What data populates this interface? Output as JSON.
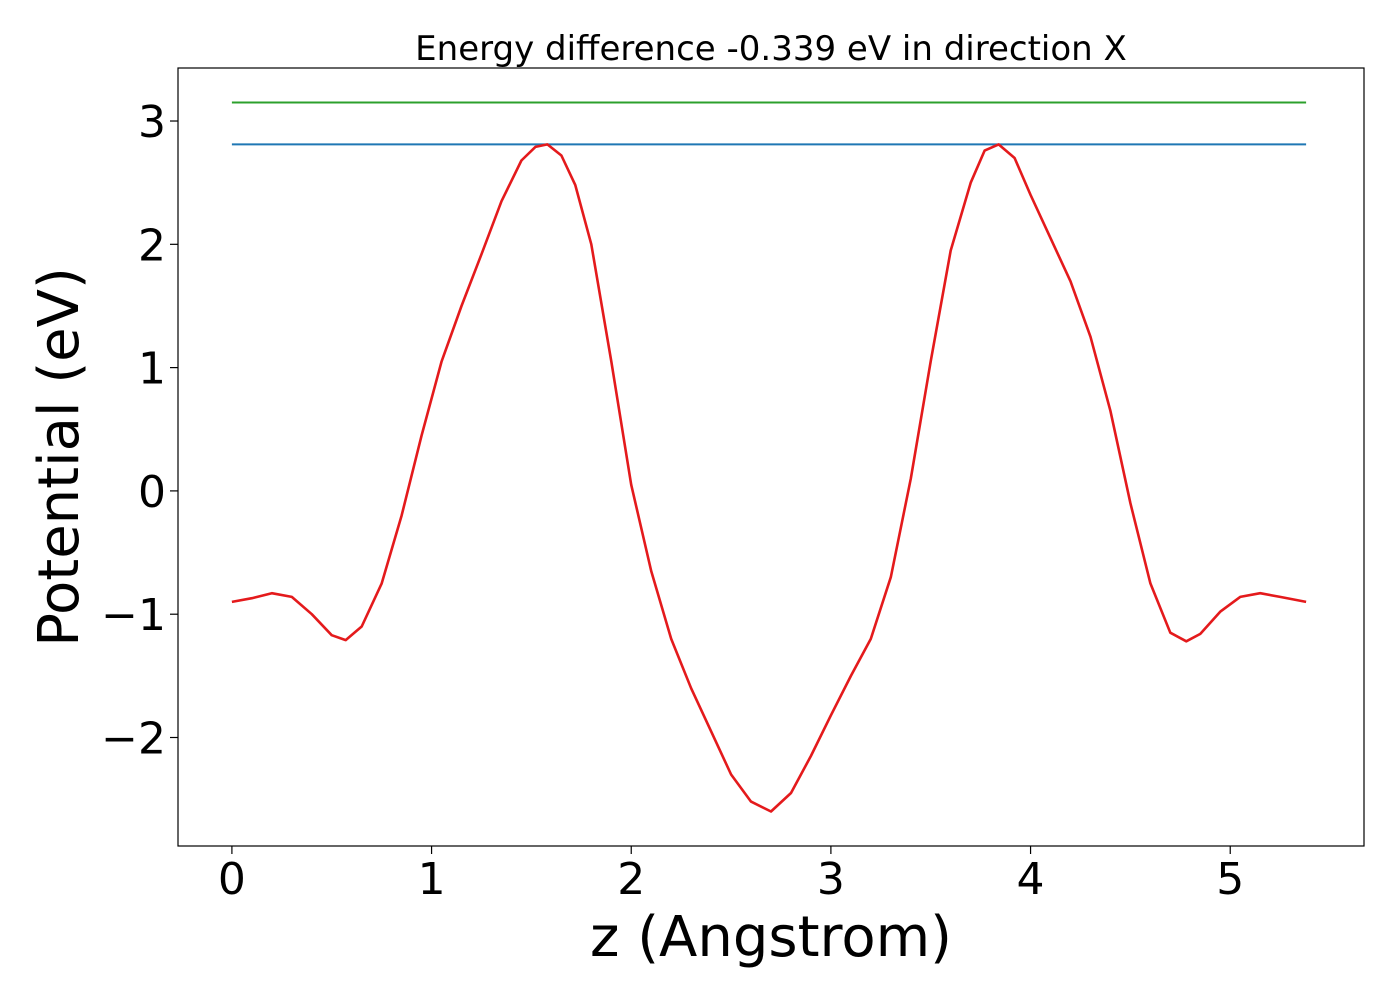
{
  "chart_data": {
    "type": "line",
    "title": "Energy difference -0.339 eV in direction X",
    "xlabel": "z (Angstrom)",
    "ylabel": "Potential (eV)",
    "xlim": [
      -0.27,
      5.67
    ],
    "ylim": [
      -2.88,
      3.43
    ],
    "grid": false,
    "xticks": [
      0,
      1,
      2,
      3,
      4,
      5
    ],
    "xtick_labels": [
      "0",
      "1",
      "2",
      "3",
      "4",
      "5"
    ],
    "yticks": [
      3,
      2,
      1,
      0,
      -1,
      -2
    ],
    "ytick_labels": [
      "3",
      "2",
      "1",
      "0",
      "−1",
      "−2"
    ],
    "series": [
      {
        "kind": "hline",
        "color": "#2ca02c",
        "y": 3.15,
        "x": [
          0,
          5.38
        ]
      },
      {
        "kind": "hline",
        "color": "#1f77b4",
        "y": 2.81,
        "x": [
          0,
          5.38
        ]
      },
      {
        "kind": "curve",
        "color": "#e41a1c",
        "x": [
          0.0,
          0.1,
          0.2,
          0.3,
          0.4,
          0.5,
          0.57,
          0.65,
          0.75,
          0.85,
          0.95,
          1.05,
          1.15,
          1.25,
          1.35,
          1.45,
          1.52,
          1.58,
          1.65,
          1.72,
          1.8,
          1.9,
          2.0,
          2.1,
          2.2,
          2.3,
          2.4,
          2.5,
          2.6,
          2.7,
          2.8,
          2.9,
          3.0,
          3.1,
          3.2,
          3.3,
          3.4,
          3.5,
          3.6,
          3.7,
          3.77,
          3.84,
          3.92,
          4.0,
          4.1,
          4.2,
          4.3,
          4.4,
          4.5,
          4.6,
          4.7,
          4.78,
          4.85,
          4.95,
          5.05,
          5.15,
          5.25,
          5.38
        ],
        "y": [
          -0.9,
          -0.87,
          -0.83,
          -0.86,
          -1.0,
          -1.17,
          -1.21,
          -1.1,
          -0.75,
          -0.2,
          0.45,
          1.05,
          1.5,
          1.92,
          2.35,
          2.68,
          2.79,
          2.81,
          2.72,
          2.48,
          2.0,
          1.05,
          0.05,
          -0.65,
          -1.2,
          -1.6,
          -1.95,
          -2.3,
          -2.52,
          -2.6,
          -2.45,
          -2.15,
          -1.82,
          -1.5,
          -1.2,
          -0.7,
          0.1,
          1.05,
          1.95,
          2.5,
          2.76,
          2.81,
          2.7,
          2.4,
          2.05,
          1.7,
          1.25,
          0.65,
          -0.1,
          -0.75,
          -1.15,
          -1.22,
          -1.16,
          -0.98,
          -0.86,
          -0.83,
          -0.86,
          -0.9
        ]
      }
    ]
  }
}
